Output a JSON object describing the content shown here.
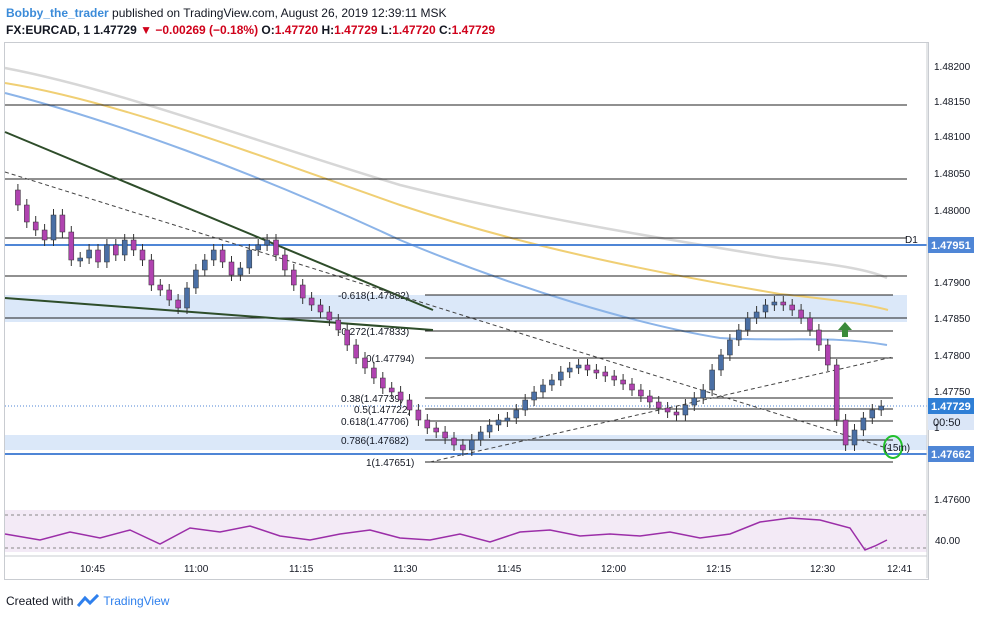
{
  "header": {
    "author": "Bobby_the_trader",
    "published_text": "published on TradingView.com, August 26, 2019 12:39:11 MSK",
    "symbol": "FX:EURCAD, 1",
    "last": "1.47729",
    "change": "−0.00269 (−0.18%)",
    "ohlc_o_label": "O:",
    "ohlc_o": "1.47720",
    "ohlc_h_label": "H:",
    "ohlc_h": "1.47729",
    "ohlc_l_label": "L:",
    "ohlc_l": "1.47720",
    "ohlc_c_label": "C:",
    "ohlc_c": "1.47729"
  },
  "price_axis": {
    "ticks": [
      "1.48200",
      "1.48150",
      "1.48100",
      "1.48050",
      "1.48000",
      "1.47900",
      "1.47850",
      "1.47800",
      "1.47750",
      "1.47600"
    ],
    "tag_d1_level": "1.47951",
    "tag_d1_marker": "D1",
    "tag_last": "1.47729",
    "tag_countdown": "00:50",
    "tag_low_level": "1.47662",
    "tag_small": "1"
  },
  "time_axis": {
    "ticks": [
      "10:45",
      "11:00",
      "11:15",
      "11:30",
      "11:45",
      "12:00",
      "12:15",
      "12:30",
      "12:41"
    ]
  },
  "fib_labels": {
    "f_neg0618": "-0.618(1.47882)",
    "f_neg0272": "-0.272(1.47833)",
    "f_0": "0(1.47794)",
    "f_0382": "0.38(1.47739)",
    "f_05": "0.5(1.47722)",
    "f_0618": "0.618(1.47706)",
    "f_0786": "0.786(1.47682)",
    "f_1": "1(1.47651)"
  },
  "annotations": {
    "timer_label": "(15m)"
  },
  "rsi": {
    "level_label": "40.00"
  },
  "colors": {
    "bull_candle": "#4a6fa5",
    "bear_candle": "#b043b0",
    "ma_grey": "#d7d7d7",
    "ma_gold": "#f0cf74",
    "ma_blue": "#8cb4e8",
    "trendline_green": "#2e4d2a",
    "zone_blue": "#cfe0f7",
    "level_blue": "#4f86d6",
    "arrow_green": "#3a8a3a",
    "rsi_purple": "#9b2ea8"
  },
  "footer": {
    "created_with": "Created with",
    "brand": "TradingView"
  }
}
